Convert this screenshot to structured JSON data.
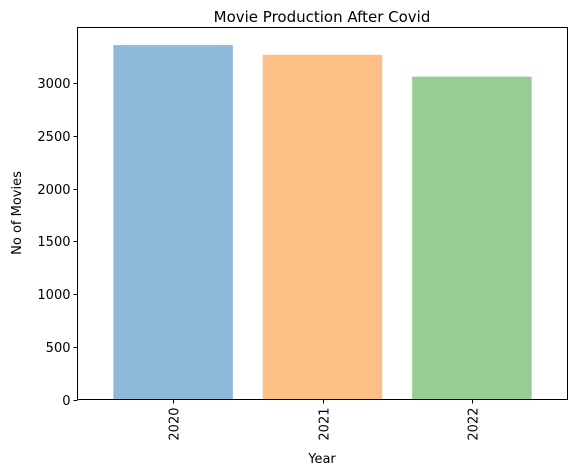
{
  "chart_data": {
    "type": "bar",
    "title": "Movie Production After Covid",
    "xlabel": "Year",
    "ylabel": "No of Movies",
    "categories": [
      "2020",
      "2021",
      "2022"
    ],
    "values": [
      3363,
      3272,
      3064
    ],
    "ylim": [
      0,
      3530
    ],
    "yticks": [
      0,
      500,
      1000,
      1500,
      2000,
      2500,
      3000
    ],
    "ytick_labels": [
      "0",
      "500",
      "1000",
      "1500",
      "2000",
      "2500",
      "3000"
    ],
    "bar_colors": [
      "#8fb9d9",
      "#febf87",
      "#96cd94"
    ],
    "grid": false,
    "xtick_rotation": "vertical"
  }
}
